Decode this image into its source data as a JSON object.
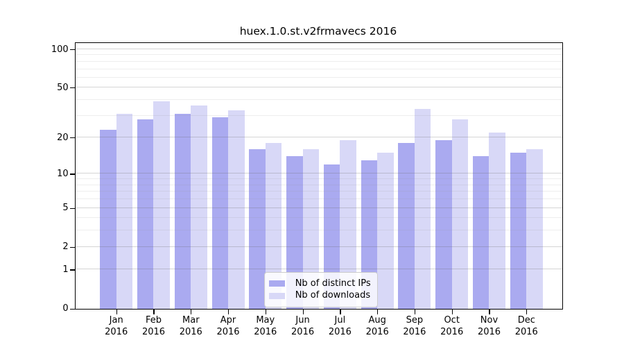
{
  "title": "huex.1.0.st.v2frmavecs 2016",
  "chart_data": {
    "type": "bar",
    "title": "huex.1.0.st.v2frmavecs 2016",
    "categories": [
      "Jan 2016",
      "Feb 2016",
      "Mar 2016",
      "Apr 2016",
      "May 2016",
      "Jun 2016",
      "Jul 2016",
      "Aug 2016",
      "Sep 2016",
      "Oct 2016",
      "Nov 2016",
      "Dec 2016"
    ],
    "series": [
      {
        "name": "Nb of distinct IPs",
        "color": "#AAAAF0",
        "values": [
          23,
          28,
          31,
          29,
          16,
          14,
          12,
          13,
          18,
          19,
          14,
          15
        ]
      },
      {
        "name": "Nb of downloads",
        "color": "#D8D8F7",
        "values": [
          31,
          39,
          36,
          33,
          18,
          16,
          19,
          15,
          34,
          28,
          22,
          16
        ]
      }
    ],
    "xlabel": "",
    "ylabel": "",
    "yscale": "log1p",
    "ylim": [
      0,
      100
    ],
    "ytick_values": [
      100,
      50,
      20,
      10,
      5,
      2,
      1,
      0
    ],
    "ytick_labels": [
      "100",
      "50",
      "20",
      "10",
      "5",
      "2",
      "1",
      "0"
    ],
    "major_gridlines": [
      1,
      2,
      5,
      10,
      20,
      50,
      100
    ],
    "minor_gridlines": [
      3,
      4,
      6,
      7,
      8,
      9,
      30,
      40,
      60,
      70,
      80,
      90
    ],
    "grid": true,
    "legend_position": "lower center"
  }
}
